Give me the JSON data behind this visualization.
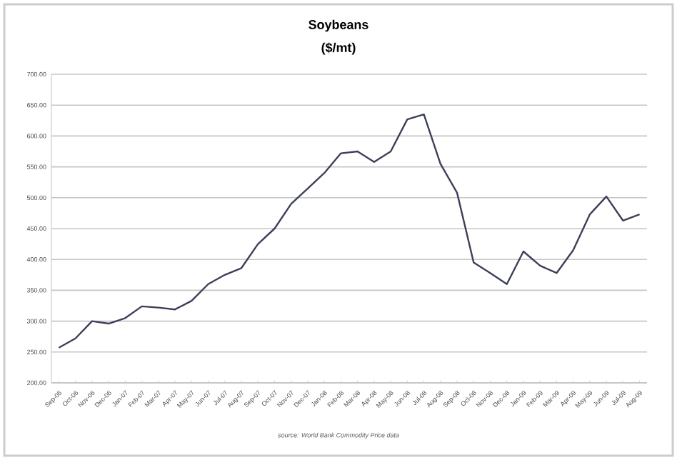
{
  "chart_data": {
    "type": "line",
    "title": "Soybeans",
    "subtitle": "($/mt)",
    "categories": [
      "Sep-06",
      "Oct-06",
      "Nov-06",
      "Dec-06",
      "Jan-07",
      "Feb-07",
      "Mar-07",
      "Apr-07",
      "May-07",
      "Jun-07",
      "Jul-07",
      "Aug-07",
      "Sep-07",
      "Oct-07",
      "Nov-07",
      "Dec-07",
      "Jan-08",
      "Feb-08",
      "Mar-08",
      "Apr-08",
      "May-08",
      "Jun-08",
      "Jul-08",
      "Aug-08",
      "Sep-08",
      "Oct-08",
      "Nov-08",
      "Dec-08",
      "Jan-09",
      "Feb-09",
      "Mar-09",
      "Apr-09",
      "May-09",
      "Jun-09",
      "Jul-09",
      "Aug-09"
    ],
    "series": [
      {
        "color": "#3d4058",
        "values": [
          257,
          272,
          300,
          296,
          305,
          324,
          322,
          319,
          333,
          360,
          375,
          386,
          425,
          450,
          490,
          515,
          540,
          572,
          575,
          558,
          575,
          627,
          635,
          555,
          508,
          395,
          378,
          360,
          413,
          390,
          378,
          415,
          473,
          502,
          463,
          473
        ]
      }
    ],
    "ylim": [
      200,
      700
    ],
    "yticks": [
      {
        "value": 200,
        "label": "200.00"
      },
      {
        "value": 250,
        "label": "250.00"
      },
      {
        "value": 300,
        "label": "300.00"
      },
      {
        "value": 350,
        "label": "350.00"
      },
      {
        "value": 400,
        "label": "400.00"
      },
      {
        "value": 450,
        "label": "450.00"
      },
      {
        "value": 500,
        "label": "500.00"
      },
      {
        "value": 550,
        "label": "550.00"
      },
      {
        "value": 600,
        "label": "600.00"
      },
      {
        "value": 650,
        "label": "650.00"
      },
      {
        "value": 700,
        "label": "700.00"
      }
    ],
    "grid": "y",
    "legend": false,
    "marker": "none",
    "line_style": "solid",
    "annotations": [
      "source: World Bank Commodity Price data"
    ]
  }
}
